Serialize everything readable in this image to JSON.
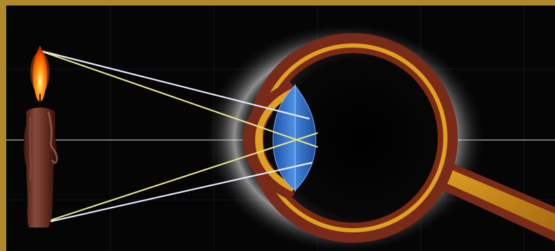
{
  "colors": {
    "frame": "#b08a2a",
    "background": "#050505",
    "grid": "#1e2a3a",
    "optical_axis": "#d8d8d8",
    "sclera_outer": "#7a2a18",
    "choroid_gold": "#e0a020",
    "glow": "#ffffff",
    "lens": "#3f7ed6",
    "ray_white": "#e9ecff",
    "ray_yellow": "#e7e48a",
    "candle_wax": "#6b2f22",
    "flame": "#ff8a1a"
  },
  "icons": {
    "object": "candle-icon",
    "flame": "flame-icon",
    "eye": "eye-icon",
    "lens": "lens-icon"
  }
}
